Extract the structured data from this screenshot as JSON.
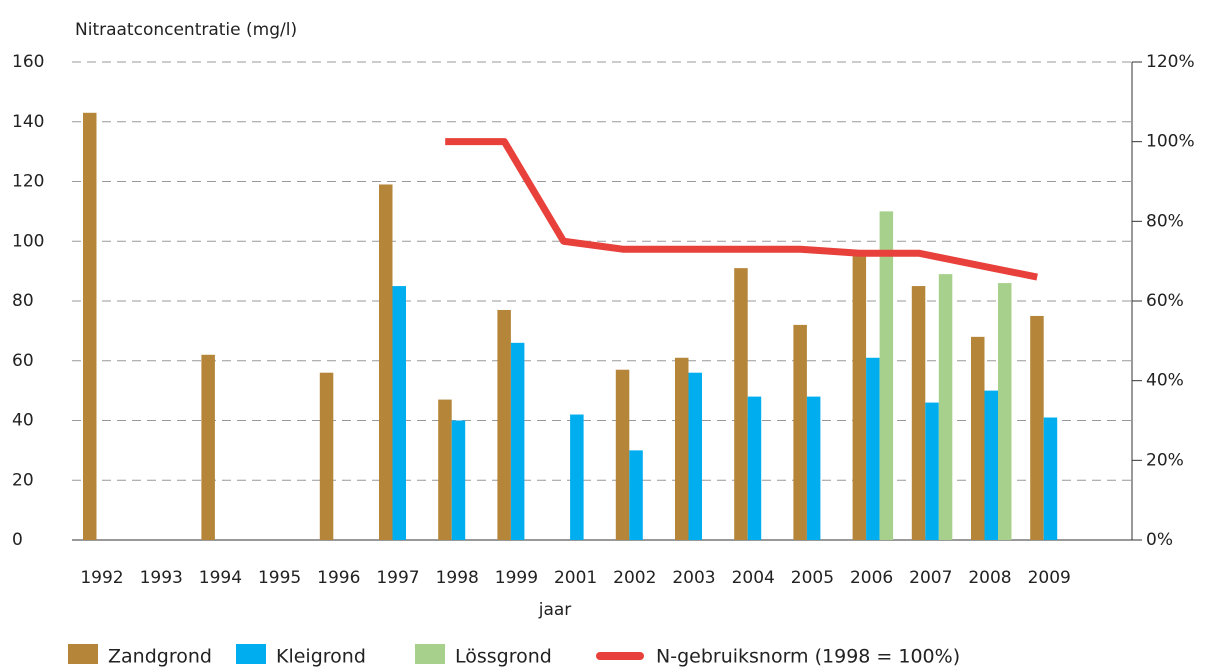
{
  "chart_data": {
    "type": "bar",
    "y_label": "Nitraatconcentratie (mg/l)",
    "x_label": "jaar",
    "categories": [
      "1992",
      "1993",
      "1994",
      "1995",
      "1996",
      "1997",
      "1998",
      "1999",
      "2001",
      "2002",
      "2003",
      "2004",
      "2005",
      "2006",
      "2007",
      "2008",
      "2009"
    ],
    "series": [
      {
        "name": "Zandgrond",
        "color": "#b5853a",
        "values": [
          143,
          null,
          62,
          null,
          56,
          119,
          47,
          77,
          null,
          57,
          61,
          91,
          72,
          96,
          85,
          68,
          75
        ]
      },
      {
        "name": "Kleigrond",
        "color": "#00aeef",
        "values": [
          null,
          null,
          null,
          null,
          null,
          85,
          40,
          66,
          42,
          30,
          56,
          48,
          48,
          61,
          46,
          50,
          41
        ]
      },
      {
        "name": "Lössgrond",
        "color": "#a8d08d",
        "values": [
          null,
          null,
          null,
          null,
          null,
          null,
          null,
          null,
          null,
          null,
          null,
          null,
          null,
          110,
          89,
          86,
          null
        ]
      },
      {
        "name": "N-gebruiksnorm (1998 = 100%)",
        "color": "#e8403a",
        "type": "line",
        "axis": "y2",
        "values": [
          null,
          null,
          null,
          null,
          null,
          null,
          100,
          100,
          75,
          73,
          73,
          73,
          73,
          72,
          72,
          69,
          66
        ]
      }
    ],
    "ylim": [
      0,
      160
    ],
    "yticks": [
      0,
      20,
      40,
      60,
      80,
      100,
      120,
      140,
      160
    ],
    "y2lim": [
      0,
      120
    ],
    "y2ticks": [
      {
        "value": 0,
        "label": "0%"
      },
      {
        "value": 20,
        "label": "20%"
      },
      {
        "value": 40,
        "label": "40%"
      },
      {
        "value": 60,
        "label": "60%"
      },
      {
        "value": 80,
        "label": "80%"
      },
      {
        "value": 100,
        "label": "100%"
      },
      {
        "value": 120,
        "label": "120%"
      }
    ],
    "grid": true
  }
}
